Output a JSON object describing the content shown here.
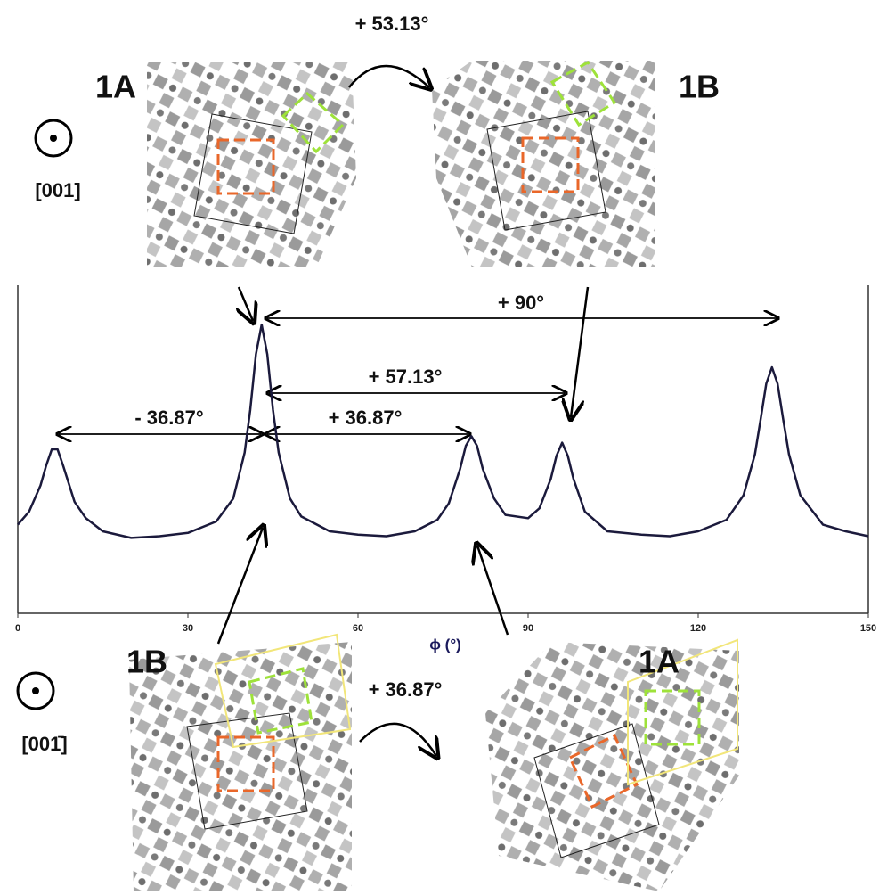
{
  "chart_data": {
    "type": "line",
    "x": [
      0,
      2,
      4,
      5,
      6,
      7,
      8,
      10,
      12,
      15,
      20,
      25,
      30,
      35,
      38,
      40,
      41,
      42,
      43,
      44,
      45,
      46,
      48,
      50,
      55,
      60,
      65,
      70,
      74,
      76,
      78,
      79,
      80,
      81,
      82,
      84,
      86,
      90,
      92,
      94,
      95,
      96,
      97,
      98,
      100,
      104,
      110,
      115,
      120,
      125,
      128,
      130,
      131,
      132,
      133,
      134,
      135,
      136,
      138,
      142,
      146,
      150
    ],
    "values": [
      27,
      31,
      39,
      45,
      50,
      50,
      45,
      34,
      29,
      25,
      23,
      23.5,
      24.5,
      28,
      35,
      49,
      62,
      79,
      88,
      79,
      62,
      49,
      35,
      29.5,
      25,
      24,
      23.5,
      25,
      28.5,
      33.5,
      44,
      51,
      54,
      51,
      44,
      35,
      30,
      29,
      32,
      41,
      48,
      52,
      48,
      41,
      31,
      25,
      24,
      23.5,
      25,
      28.5,
      36,
      48.5,
      59,
      70,
      75,
      70,
      59,
      48.5,
      36,
      27,
      25,
      23.5
    ],
    "color": "#1b1a3c",
    "xlim": [
      0,
      150
    ],
    "xticks": [
      0,
      30,
      60,
      90,
      120,
      150
    ],
    "ylim": [
      0,
      100
    ],
    "xlabel": "ϕ (°)",
    "annotations": [
      "+ 53.13°",
      "1A",
      "1B",
      "[001]",
      "+ 90°",
      "+ 57.13°",
      "- 36.87°",
      "+ 36.87°",
      "1B",
      "1A",
      "+ 36.87°",
      "[001̄]"
    ]
  }
}
